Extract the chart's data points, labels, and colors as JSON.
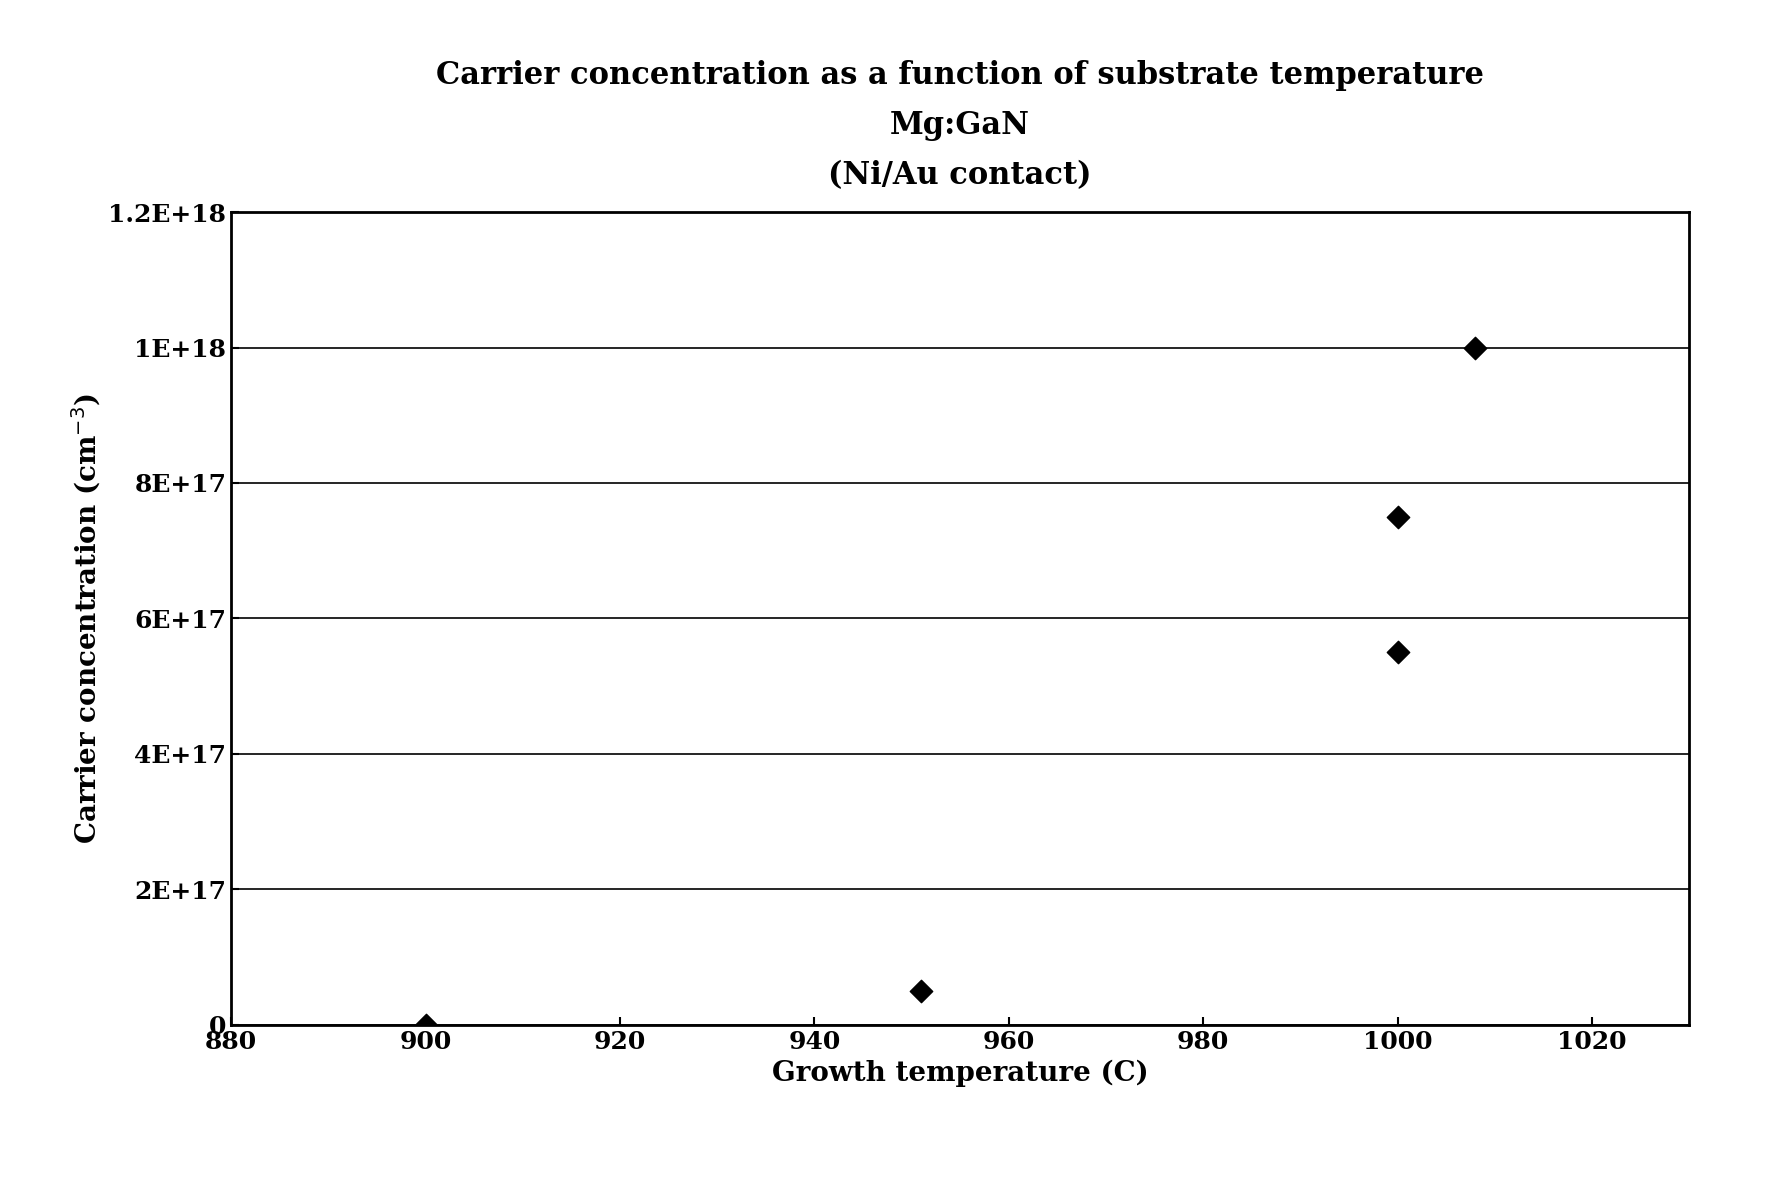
{
  "title_line1": "Carrier concentration as a function of substrate temperature",
  "title_line2": "Mg:GaN",
  "title_line3": "(Ni/Au contact)",
  "xlabel": "Growth temperature (C)",
  "x_data": [
    900,
    951,
    1000,
    1000,
    1008
  ],
  "y_data": [
    200000000000000.0,
    5e+16,
    7.5e+17,
    5.5e+17,
    1e+18
  ],
  "xlim": [
    880,
    1030
  ],
  "ylim": [
    0,
    1.2e+18
  ],
  "xticks": [
    880,
    900,
    920,
    940,
    960,
    980,
    1000,
    1020
  ],
  "yticks": [
    0,
    2e+17,
    4e+17,
    6e+17,
    8e+17,
    1e+18,
    1.2e+18
  ],
  "ytick_labels": [
    "0",
    "2E+17",
    "4E+17",
    "6E+17",
    "8E+17",
    "1E+18",
    "1.2E+18"
  ],
  "marker_color": "#000000",
  "background_color": "#ffffff",
  "title_fontsize": 22,
  "axis_label_fontsize": 20,
  "tick_fontsize": 18,
  "marker_size": 130,
  "grid_color": "#000000",
  "grid_linewidth": 1.2,
  "spine_linewidth": 2.0
}
